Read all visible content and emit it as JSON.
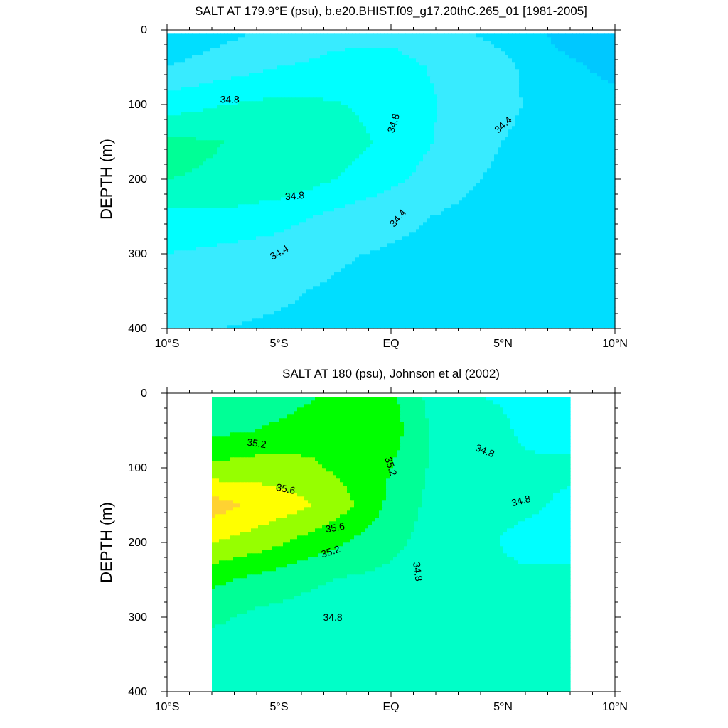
{
  "colors": {
    "levels": [
      34.0,
      34.2,
      34.4,
      34.6,
      34.8,
      35.0,
      35.2,
      35.4,
      35.6,
      35.8
    ],
    "fills": [
      "#0096ff",
      "#00c8ff",
      "#00deff",
      "#38ebff",
      "#00ffff",
      "#00ffc8",
      "#00ff96",
      "#00ff00",
      "#96ff00",
      "#ffff00",
      "#ffd232"
    ]
  },
  "chart_data": [
    {
      "type": "contour",
      "title": "SALT AT 179.9°E (psu), b.e20.BHIST.f09_g17.20thC.265_01 [1981-2005]",
      "ylabel": "DEPTH (m)",
      "xlabel": "",
      "xlim": [
        -10,
        10
      ],
      "ylim": [
        0,
        400
      ],
      "y_inverted": true,
      "xticks": [
        {
          "v": -10,
          "l": "10°S"
        },
        {
          "v": -5,
          "l": "5°S"
        },
        {
          "v": 0,
          "l": "EQ"
        },
        {
          "v": 5,
          "l": "5°N"
        },
        {
          "v": 10,
          "l": "10°N"
        }
      ],
      "yticks": [
        0,
        100,
        200,
        300,
        400
      ],
      "lat": [
        -10,
        -7.5,
        -5,
        -2.5,
        0,
        2.5,
        5,
        7.5,
        10
      ],
      "depth": [
        5,
        50,
        100,
        150,
        200,
        250,
        300,
        350,
        400
      ],
      "salinity": [
        [
          34.25,
          34.35,
          34.45,
          34.55,
          34.55,
          34.45,
          34.35,
          34.15,
          34.05
        ],
        [
          34.4,
          34.5,
          34.6,
          34.65,
          34.68,
          34.55,
          34.45,
          34.25,
          34.15
        ],
        [
          34.7,
          34.8,
          34.85,
          34.82,
          34.72,
          34.58,
          34.45,
          34.3,
          34.25
        ],
        [
          35.05,
          35.0,
          35.0,
          34.9,
          34.75,
          34.55,
          34.4,
          34.3,
          34.25
        ],
        [
          35.0,
          34.98,
          34.95,
          34.8,
          34.65,
          34.48,
          34.35,
          34.28,
          34.25
        ],
        [
          34.75,
          34.75,
          34.68,
          34.55,
          34.45,
          34.38,
          34.3,
          34.25,
          34.25
        ],
        [
          34.6,
          34.55,
          34.5,
          34.42,
          34.38,
          34.35,
          34.3,
          34.28,
          34.3
        ],
        [
          34.45,
          34.45,
          34.42,
          34.38,
          34.36,
          34.35,
          34.3,
          34.3,
          34.35
        ],
        [
          34.4,
          34.4,
          34.38,
          34.37,
          34.36,
          34.35,
          34.35,
          34.35,
          34.35
        ]
      ],
      "contour_labels": [
        {
          "text": "34.8",
          "lat": -7.2,
          "depth": 93,
          "angle": 0
        },
        {
          "text": "34.8",
          "lat": 0.1,
          "depth": 125,
          "angle": -72
        },
        {
          "text": "34.4",
          "lat": 5.0,
          "depth": 127,
          "angle": -42
        },
        {
          "text": "34.8",
          "lat": -4.3,
          "depth": 222,
          "angle": -5
        },
        {
          "text": "34.4",
          "lat": 0.3,
          "depth": 252,
          "angle": -50
        },
        {
          "text": "34.4",
          "lat": -5.0,
          "depth": 298,
          "angle": -30
        }
      ]
    },
    {
      "type": "contour",
      "title": "SALT AT 180 (psu), Johnson et al (2002)",
      "ylabel": "DEPTH (m)",
      "xlabel": "",
      "xlim": [
        -10,
        10
      ],
      "ylim": [
        0,
        400
      ],
      "y_inverted": true,
      "xticks": [
        {
          "v": -10,
          "l": "10°S"
        },
        {
          "v": -5,
          "l": "5°S"
        },
        {
          "v": 0,
          "l": "EQ"
        },
        {
          "v": 5,
          "l": "5°N"
        },
        {
          "v": 10,
          "l": "10°N"
        }
      ],
      "yticks": [
        0,
        100,
        200,
        300,
        400
      ],
      "lat": [
        -8,
        -6,
        -4,
        -2,
        0,
        2,
        4,
        6,
        8
      ],
      "depth": [
        5,
        50,
        100,
        150,
        200,
        250,
        300,
        350,
        400
      ],
      "salinity": [
        [
          35.0,
          35.05,
          35.15,
          35.3,
          35.25,
          34.9,
          34.8,
          34.78,
          34.65
        ],
        [
          35.15,
          35.2,
          35.3,
          35.4,
          35.3,
          34.95,
          34.85,
          34.78,
          34.7
        ],
        [
          35.45,
          35.5,
          35.45,
          35.35,
          35.2,
          34.95,
          34.85,
          34.82,
          34.85
        ],
        [
          35.9,
          35.75,
          35.65,
          35.45,
          35.15,
          34.92,
          34.88,
          34.85,
          34.75
        ],
        [
          35.6,
          35.5,
          35.35,
          35.2,
          35.05,
          34.92,
          34.85,
          34.72,
          34.72
        ],
        [
          35.25,
          35.15,
          35.05,
          34.98,
          34.95,
          34.9,
          34.88,
          34.85,
          34.85
        ],
        [
          35.05,
          34.95,
          34.92,
          34.88,
          34.86,
          34.85,
          34.85,
          34.85,
          34.85
        ],
        [
          34.88,
          34.87,
          34.86,
          34.85,
          34.85,
          34.85,
          34.85,
          34.85,
          34.85
        ],
        [
          34.85,
          34.85,
          34.85,
          34.85,
          34.85,
          34.85,
          34.85,
          34.85,
          34.85
        ]
      ],
      "contour_labels": [
        {
          "text": "35.2",
          "lat": -6.0,
          "depth": 67,
          "angle": 8
        },
        {
          "text": "35.2",
          "lat": 0.0,
          "depth": 98,
          "angle": 72
        },
        {
          "text": "34.8",
          "lat": 4.2,
          "depth": 77,
          "angle": 22
        },
        {
          "text": "35.6",
          "lat": -4.7,
          "depth": 128,
          "angle": 12
        },
        {
          "text": "34.8",
          "lat": 5.8,
          "depth": 144,
          "angle": -15
        },
        {
          "text": "35.6",
          "lat": -2.5,
          "depth": 180,
          "angle": -10
        },
        {
          "text": "35.2",
          "lat": -2.7,
          "depth": 212,
          "angle": -18
        },
        {
          "text": "34.8",
          "lat": 1.2,
          "depth": 239,
          "angle": 82
        },
        {
          "text": "34.8",
          "lat": -2.6,
          "depth": 300,
          "angle": 0
        }
      ]
    }
  ]
}
